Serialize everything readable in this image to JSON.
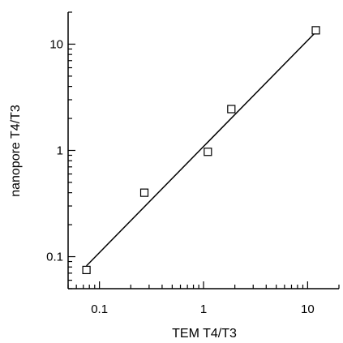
{
  "chart_data": {
    "type": "scatter",
    "xlabel": "TEM T4/T3",
    "ylabel": "nanopore T4/T3",
    "xscale": "log",
    "yscale": "log",
    "xlim": [
      0.05,
      20
    ],
    "ylim": [
      0.05,
      20
    ],
    "grid": false,
    "marker": "open-square",
    "x_ticks": [
      {
        "value": 0.1,
        "label": "0.1"
      },
      {
        "value": 1,
        "label": "1"
      },
      {
        "value": 10,
        "label": "10"
      }
    ],
    "y_ticks": [
      {
        "value": 0.1,
        "label": "0.1"
      },
      {
        "value": 1,
        "label": "1"
      },
      {
        "value": 10,
        "label": "10"
      }
    ],
    "points": [
      {
        "x": 0.075,
        "y": 0.075
      },
      {
        "x": 0.27,
        "y": 0.4
      },
      {
        "x": 1.1,
        "y": 0.97
      },
      {
        "x": 1.85,
        "y": 2.45
      },
      {
        "x": 12,
        "y": 13.5
      }
    ],
    "fit_line": {
      "x": [
        0.075,
        12
      ],
      "y": [
        0.082,
        13
      ]
    }
  }
}
